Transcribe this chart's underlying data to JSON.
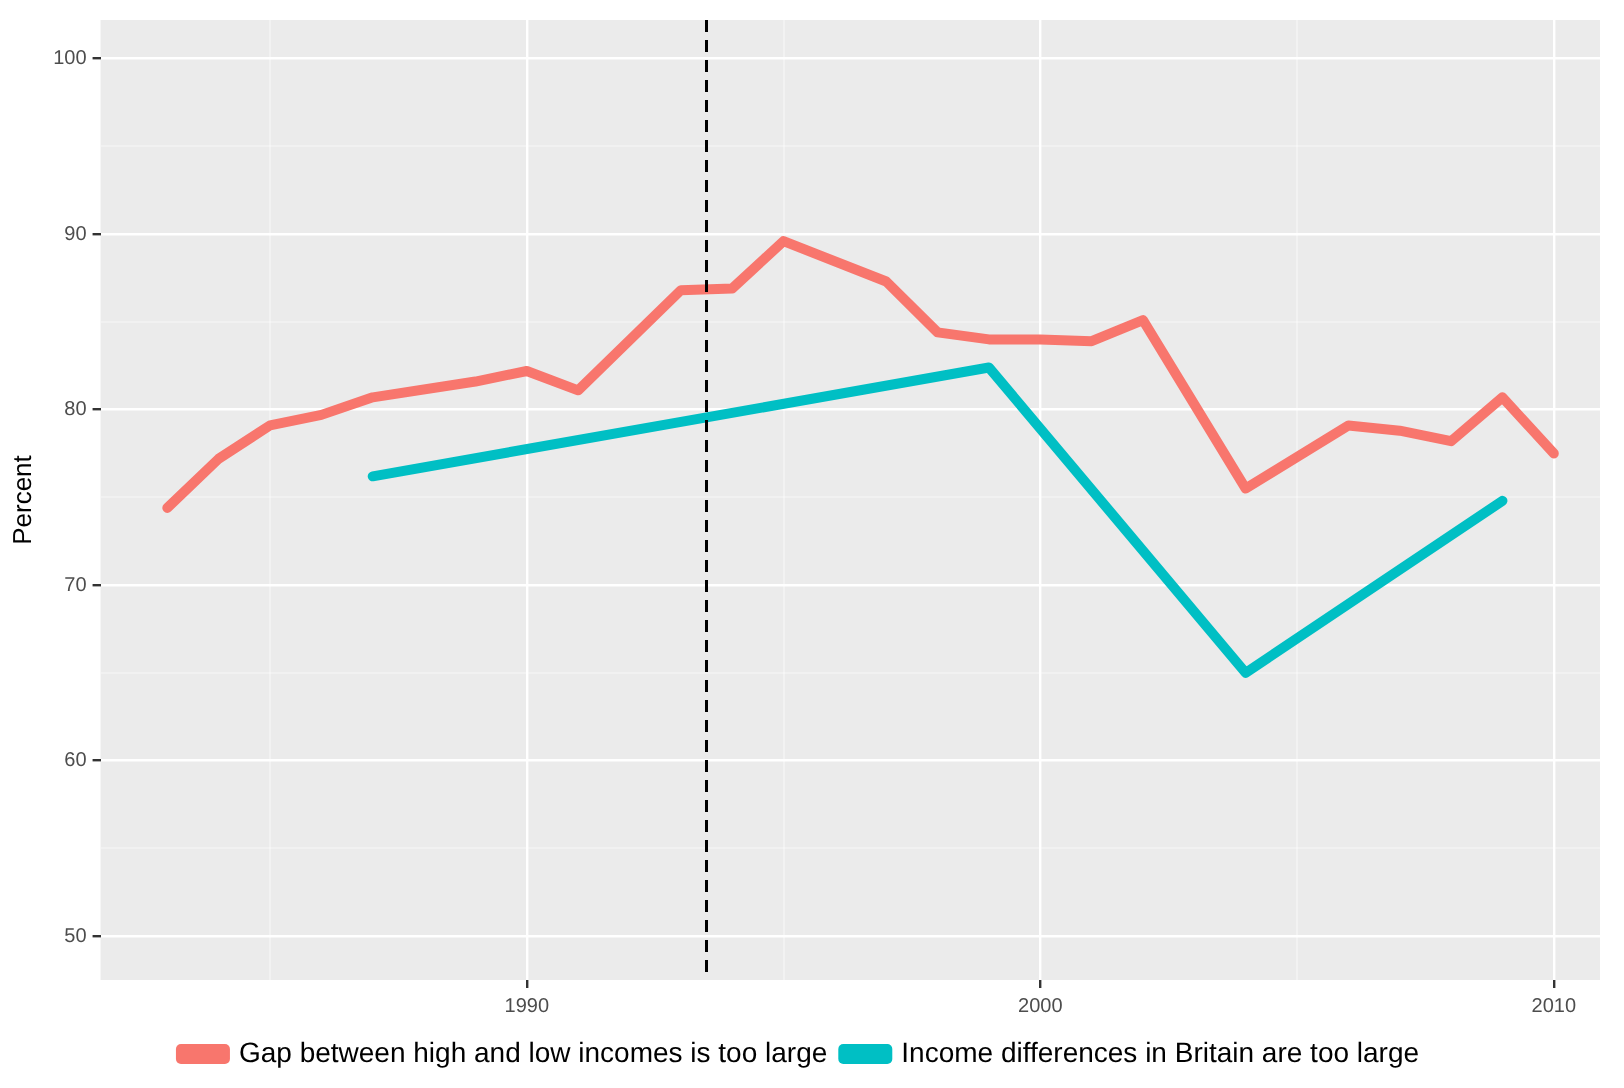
{
  "chart_data": {
    "type": "line",
    "ylabel": "Percent",
    "series": [
      {
        "name": "Gap between high and low incomes is too large",
        "color": "#f8766d",
        "x": [
          1983,
          1984,
          1985,
          1986,
          1987,
          1989,
          1990,
          1991,
          1993,
          1994,
          1995,
          1997,
          1998,
          1999,
          2000,
          2001,
          2002,
          2004,
          2006,
          2007,
          2008,
          2009,
          2010
        ],
        "values": [
          74.4,
          77.2,
          79.1,
          79.7,
          80.7,
          81.6,
          82.2,
          81.1,
          86.8,
          86.9,
          89.6,
          87.3,
          84.4,
          84.0,
          84.0,
          83.9,
          85.1,
          75.5,
          79.1,
          78.8,
          78.2,
          80.7,
          77.5
        ]
      },
      {
        "name": "Income differences in Britain are too large",
        "color": "#00bfc4",
        "x": [
          1987,
          1999,
          2004,
          2009
        ],
        "values": [
          76.2,
          82.4,
          65.0,
          74.8
        ]
      }
    ],
    "xlim": [
      1981.7,
      2010.9
    ],
    "xticks": [
      {
        "value": 1985,
        "label": null
      },
      1990,
      {
        "value": 1995,
        "label": null
      },
      2000,
      {
        "value": 2005,
        "label": null
      },
      2010
    ],
    "ylim": [
      47.5,
      102.2
    ],
    "yticks": [
      50,
      {
        "value": 55,
        "label": null
      },
      60,
      {
        "value": 65,
        "label": null
      },
      70,
      {
        "value": 75,
        "label": null
      },
      80,
      {
        "value": 85,
        "label": null
      },
      90,
      {
        "value": 95,
        "label": null
      },
      100
    ],
    "ref_lines": [
      {
        "axis": "x",
        "value": 1993.5,
        "color": "#000000",
        "line_style": "dashed"
      }
    ],
    "grid": true,
    "legend": "bottom",
    "marker": "none",
    "line_style": "solid"
  }
}
